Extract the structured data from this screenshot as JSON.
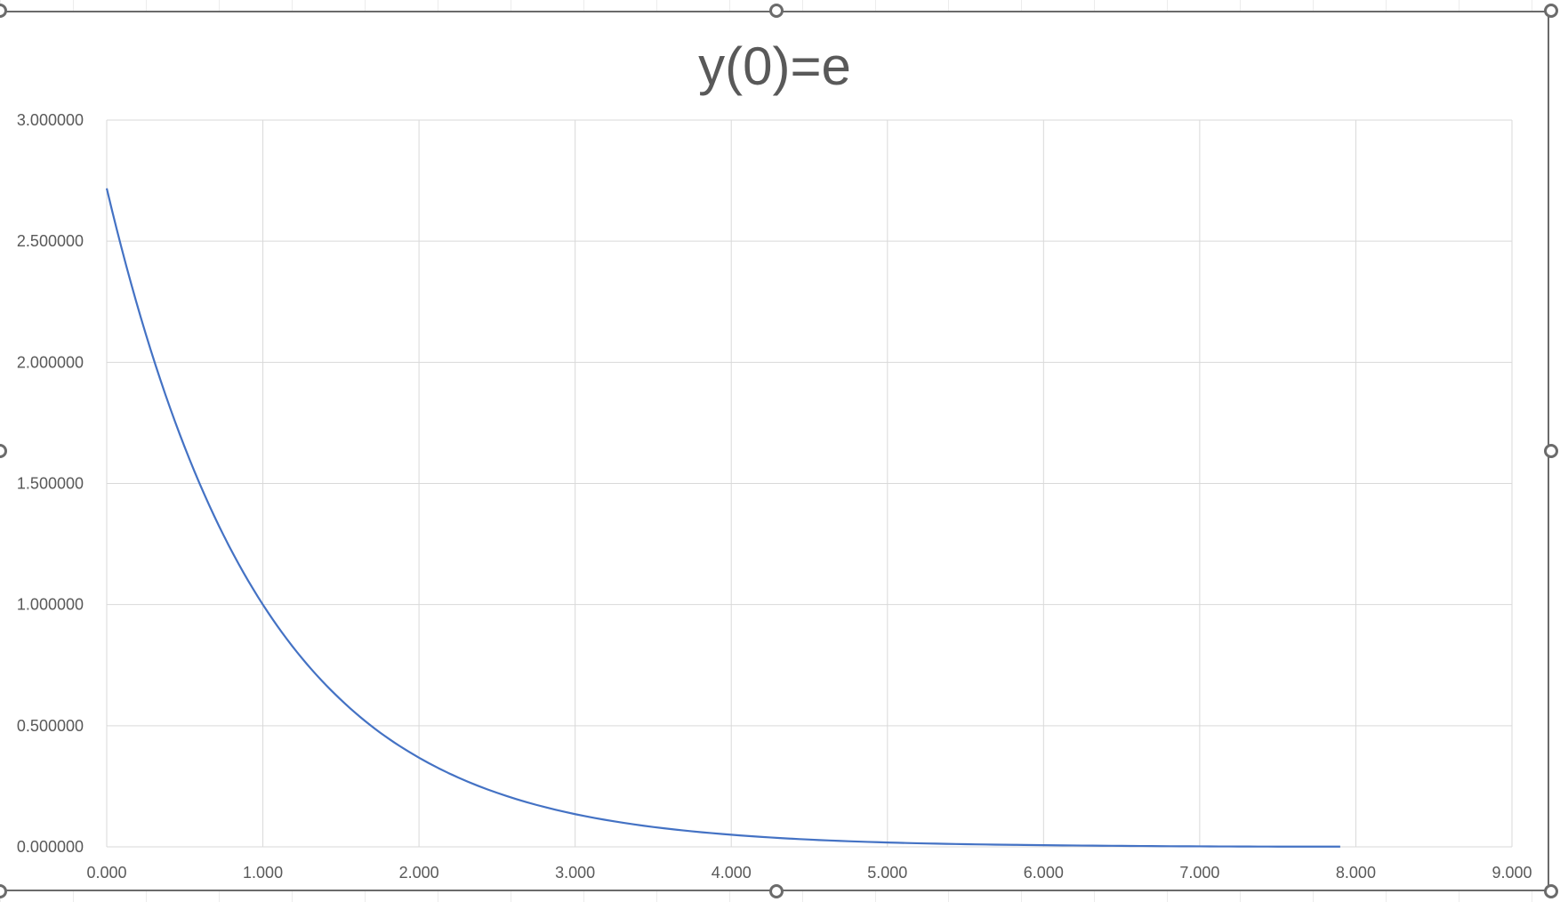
{
  "chart_data": {
    "type": "line",
    "title": "y(0)=e",
    "xlabel": "",
    "ylabel": "",
    "xlim": [
      0,
      9
    ],
    "ylim": [
      0,
      3
    ],
    "x_ticks": [
      "0.000",
      "1.000",
      "2.000",
      "3.000",
      "4.000",
      "5.000",
      "6.000",
      "7.000",
      "8.000",
      "9.000"
    ],
    "y_ticks": [
      "0.000000",
      "0.500000",
      "1.000000",
      "1.500000",
      "2.000000",
      "2.500000",
      "3.000000"
    ],
    "grid": true,
    "legend": "none",
    "series": [
      {
        "color": "#4472C4",
        "x": [
          0.0,
          0.25,
          0.5,
          0.75,
          1.0,
          1.25,
          1.5,
          1.75,
          2.0,
          2.5,
          3.0,
          3.5,
          4.0,
          4.5,
          5.0,
          5.5,
          6.0,
          6.5,
          7.0,
          7.5,
          7.9
        ],
        "y": [
          2.718,
          2.117,
          1.649,
          1.284,
          1.0,
          0.779,
          0.607,
          0.472,
          0.368,
          0.223,
          0.135,
          0.082,
          0.05,
          0.03,
          0.018,
          0.011,
          0.007,
          0.004,
          0.002,
          0.001,
          0.001
        ]
      }
    ]
  }
}
